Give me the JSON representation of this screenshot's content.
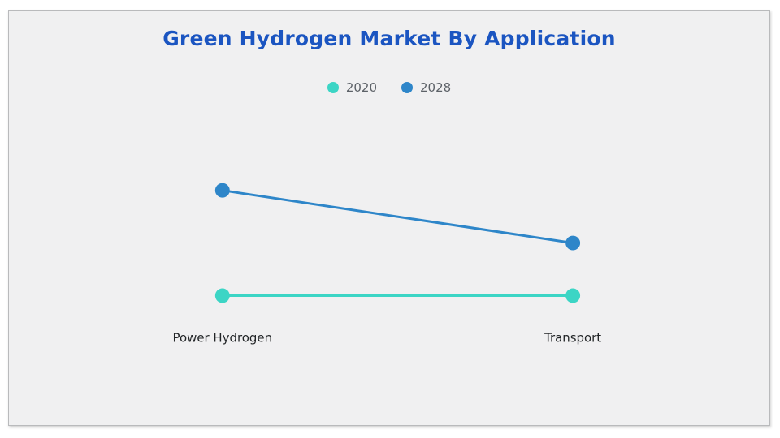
{
  "chart_data": {
    "type": "line",
    "title": "Green Hydrogen Market By Application",
    "categories": [
      "Power Hydrogen",
      "Transport"
    ],
    "series": [
      {
        "name": "2020",
        "color": "#3cd5c5",
        "values": [
          1,
          1
        ]
      },
      {
        "name": "2028",
        "color": "#2e86c9",
        "values": [
          3,
          2
        ]
      }
    ],
    "xlabel": "",
    "ylabel": "",
    "ylim": [
      0,
      3.5
    ],
    "grid": false,
    "y_axis_visible": false,
    "legend_position": "top",
    "colors": {
      "title": "#1b55c1",
      "legend_text": "#5d6268",
      "category_label": "#222527",
      "panel_background": "#f0f0f1",
      "panel_border": "#b9babc",
      "page_background": "#ffffff"
    }
  }
}
